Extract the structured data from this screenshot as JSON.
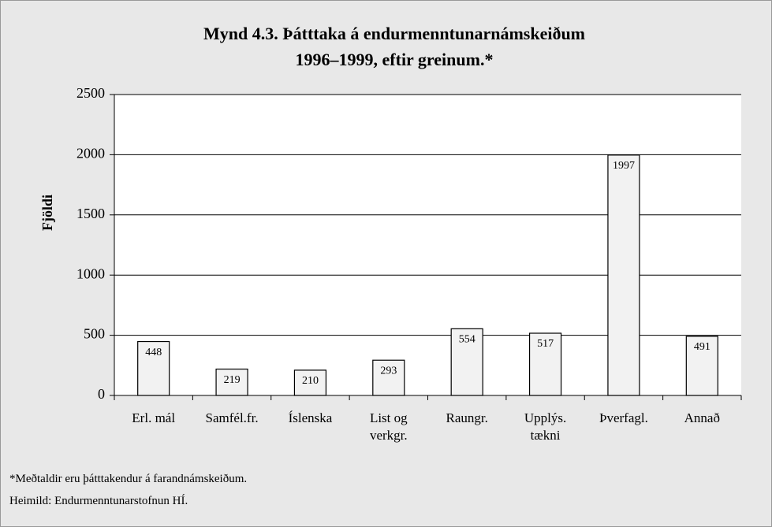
{
  "chart_data": {
    "type": "bar",
    "title": [
      "Mynd 4.3. Þátttaka á endurmenntunarnámskeiðum",
      "1996–1999, eftir greinum.*"
    ],
    "ylabel": "Fjöldi",
    "categories": [
      "Erl. mál",
      "Samfél.fr.",
      "Íslenska",
      "List og verkgr.",
      "Raungr.",
      "Upplýs. tækni",
      "Þverfagl.",
      "Annað"
    ],
    "values": [
      448,
      219,
      210,
      293,
      554,
      517,
      1997,
      491
    ],
    "color": "#f2f2f2",
    "ylim": [
      0,
      2500
    ],
    "yticks": [
      0,
      500,
      1000,
      1500,
      2000,
      2500
    ],
    "grid": true,
    "notes": [
      "*Meðtaldir eru þátttakendur á farandnámskeiðum.",
      "Heimild: Endurmenntunarstofnun HÍ."
    ]
  }
}
